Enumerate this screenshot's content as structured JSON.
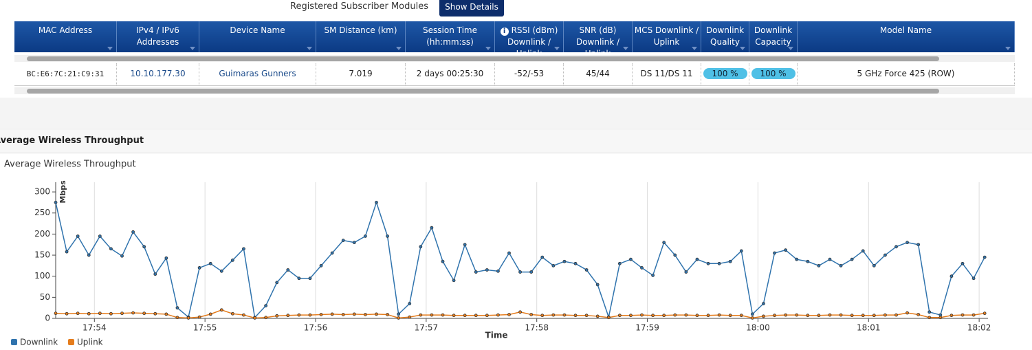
{
  "header": {
    "label": "Registered Subscriber Modules",
    "button": "Show Details"
  },
  "table": {
    "headers": [
      "MAC Address",
      "IPv4 / IPv6 Addresses",
      "Device Name",
      "SM Distance (km)",
      "Session Time (hh:mm:ss)",
      "RSSI (dBm) Downlink / Uplink",
      "SNR (dB) Downlink / Uplink",
      "MCS Downlink / Uplink",
      "Downlink Quality",
      "Downlink Capacity",
      "Model Name"
    ],
    "rows": [
      [
        "BC:E6:7C:21:C9:31",
        "10.10.177.30",
        "Guimaras Gunners",
        "7.019",
        "2 days 00:25:30",
        "-52/-53",
        "45/44",
        "DS 11/DS 11",
        "100 %",
        "100 %",
        "5 GHz Force 425 (ROW)"
      ]
    ]
  },
  "panel": {
    "title": "Average Wireless Throughput"
  },
  "chart_data": {
    "type": "line",
    "title": "Average Wireless Throughput",
    "x_label": "Time",
    "y_label": "Mbps",
    "xlim": [
      53.65,
      62.08
    ],
    "xticks": [
      {
        "value": 54,
        "label": "17:54"
      },
      {
        "value": 55,
        "label": "17:55"
      },
      {
        "value": 56,
        "label": "17:56"
      },
      {
        "value": 57,
        "label": "17:57"
      },
      {
        "value": 58,
        "label": "17:58"
      },
      {
        "value": 59,
        "label": "17:59"
      },
      {
        "value": 60,
        "label": "18:00"
      },
      {
        "value": 61,
        "label": "18:01"
      },
      {
        "value": 62,
        "label": "18:02"
      }
    ],
    "ylim": [
      0,
      323
    ],
    "yticks": [
      0,
      50,
      100,
      150,
      200,
      250,
      300
    ],
    "grid": true,
    "x": [
      53.65,
      53.75,
      53.85,
      53.95,
      54.05,
      54.15,
      54.25,
      54.35,
      54.45,
      54.55,
      54.65,
      54.75,
      54.85,
      54.95,
      55.05,
      55.15,
      55.25,
      55.35,
      55.45,
      55.55,
      55.65,
      55.75,
      55.85,
      55.95,
      56.05,
      56.15,
      56.25,
      56.35,
      56.45,
      56.55,
      56.65,
      56.75,
      56.85,
      56.95,
      57.05,
      57.15,
      57.25,
      57.35,
      57.45,
      57.55,
      57.65,
      57.75,
      57.85,
      57.95,
      58.05,
      58.15,
      58.25,
      58.35,
      58.45,
      58.55,
      58.65,
      58.75,
      58.85,
      58.95,
      59.05,
      59.15,
      59.25,
      59.35,
      59.45,
      59.55,
      59.65,
      59.75,
      59.85,
      59.95,
      60.05,
      60.15,
      60.25,
      60.35,
      60.45,
      60.55,
      60.65,
      60.75,
      60.85,
      60.95,
      61.05,
      61.15,
      61.25,
      61.35,
      61.45,
      61.55,
      61.65,
      61.75,
      61.85,
      61.95,
      62.05
    ],
    "series": [
      {
        "name": "Downlink",
        "color": "#2f73ad",
        "values": [
          275,
          158,
          195,
          150,
          195,
          165,
          148,
          205,
          170,
          105,
          143,
          25,
          3,
          120,
          130,
          112,
          138,
          165,
          2,
          30,
          85,
          115,
          95,
          95,
          125,
          155,
          185,
          180,
          195,
          275,
          195,
          10,
          35,
          170,
          215,
          135,
          90,
          175,
          110,
          115,
          112,
          155,
          110,
          110,
          145,
          125,
          135,
          130,
          115,
          80,
          3,
          130,
          140,
          120,
          102,
          180,
          150,
          110,
          140,
          130,
          130,
          135,
          160,
          10,
          35,
          155,
          162,
          140,
          135,
          125,
          140,
          125,
          140,
          160,
          125,
          150,
          170,
          180,
          175,
          15,
          8,
          100,
          130,
          95,
          145
        ]
      },
      {
        "name": "Uplink",
        "color": "#e57c1c",
        "values": [
          12,
          11,
          12,
          11,
          12,
          11,
          12,
          13,
          12,
          11,
          10,
          2,
          1,
          3,
          10,
          20,
          11,
          8,
          1,
          2,
          6,
          7,
          8,
          8,
          9,
          10,
          9,
          10,
          9,
          10,
          9,
          1,
          3,
          8,
          8,
          8,
          7,
          7,
          7,
          7,
          8,
          9,
          15,
          9,
          7,
          8,
          8,
          7,
          7,
          5,
          2,
          7,
          7,
          8,
          7,
          7,
          8,
          8,
          7,
          7,
          8,
          7,
          7,
          1,
          5,
          7,
          8,
          8,
          7,
          7,
          8,
          8,
          7,
          7,
          7,
          8,
          8,
          13,
          9,
          2,
          2,
          7,
          8,
          8,
          12
        ]
      }
    ]
  }
}
